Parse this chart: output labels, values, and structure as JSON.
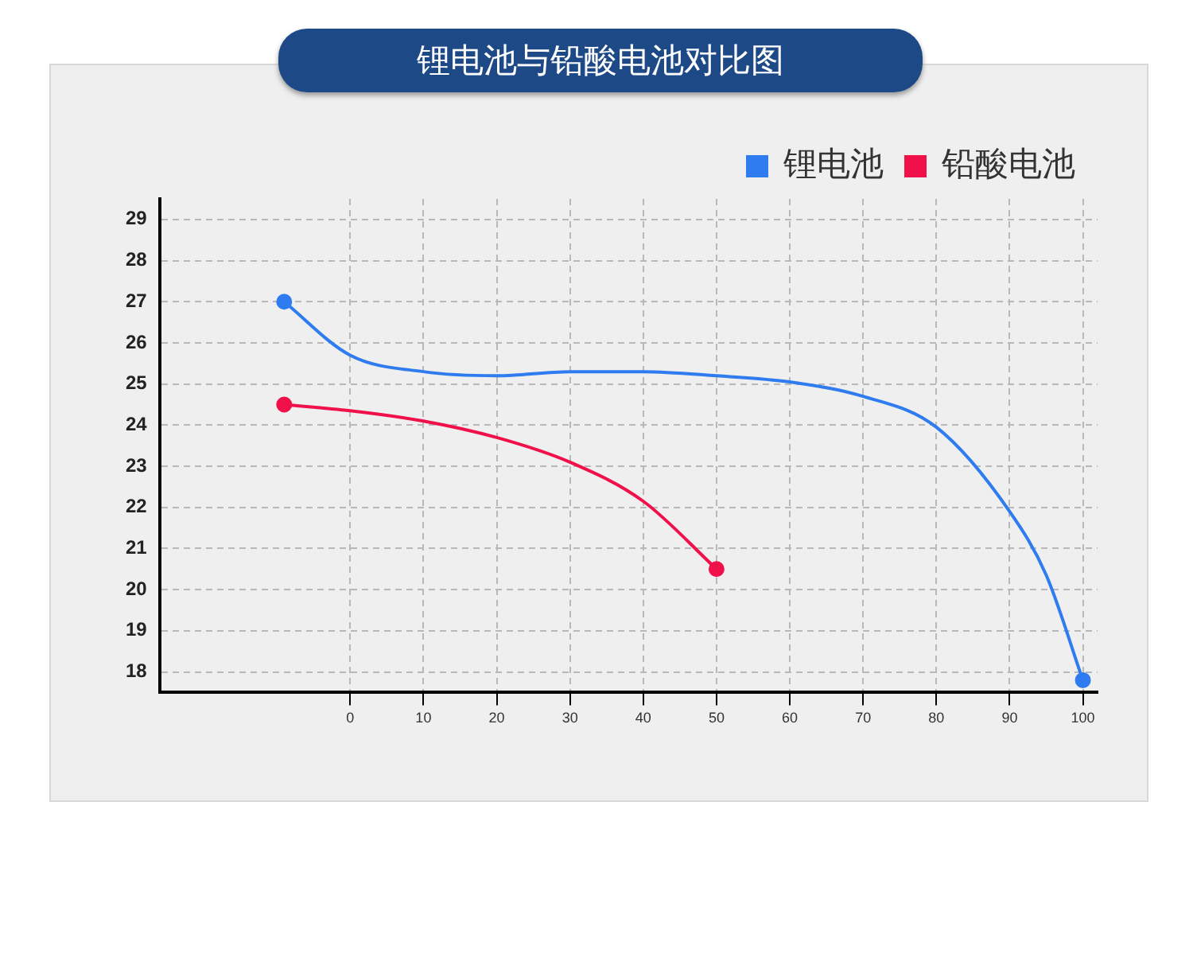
{
  "chart_data": {
    "type": "line",
    "title": "锂电池与铅酸电池对比图",
    "xlim": [
      -26,
      102
    ],
    "xticks": [
      0,
      10,
      20,
      30,
      40,
      50,
      60,
      70,
      80,
      90,
      100
    ],
    "ylim": [
      17.5,
      29.5
    ],
    "yticks": [
      18,
      19,
      20,
      21,
      22,
      23,
      24,
      25,
      26,
      27,
      28,
      29
    ],
    "grid": true,
    "legend": "top right",
    "line_style": "solid",
    "series": [
      {
        "name": "锂电池",
        "color": "#2f7bf0",
        "x": [
          -9,
          0,
          10,
          20,
          30,
          40,
          50,
          60,
          70,
          80,
          90,
          95,
          100
        ],
        "values": [
          27,
          25.7,
          25.3,
          25.2,
          25.3,
          25.3,
          25.2,
          25.05,
          24.7,
          23.95,
          21.9,
          20.35,
          17.8
        ]
      },
      {
        "name": "铅酸电池",
        "color": "#f0104a",
        "x": [
          -9,
          0,
          10,
          20,
          30,
          40,
          50
        ],
        "values": [
          24.5,
          24.35,
          24.1,
          23.7,
          23.1,
          22.15,
          20.5
        ]
      }
    ]
  }
}
